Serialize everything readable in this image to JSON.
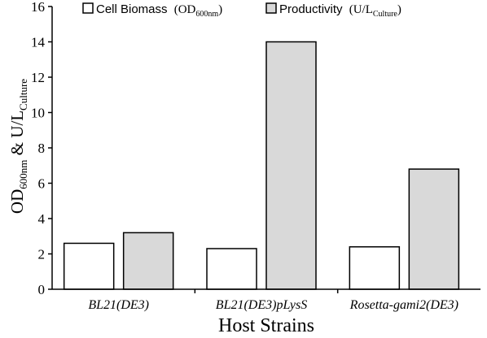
{
  "chart_data": {
    "type": "bar",
    "categories": [
      "BL21(DE3)",
      "BL21(DE3)pLysS",
      "Rosetta-gami2(DE3)"
    ],
    "series": [
      {
        "name": "Cell Biomass (OD600nm)",
        "color": "#ffffff",
        "values": [
          2.6,
          2.3,
          2.4
        ]
      },
      {
        "name": "Productivity (U/LCulture)",
        "color": "#d9d9d9",
        "values": [
          3.2,
          14.0,
          6.8
        ]
      }
    ],
    "xlabel": "Host Strains",
    "ylabel": "OD600nm & U/LCulture",
    "ylim": [
      0,
      16
    ],
    "yticks": [
      0,
      2,
      4,
      6,
      8,
      10,
      12,
      14,
      16
    ],
    "grid": false,
    "legend": "top-center"
  },
  "legend": {
    "biomass": {
      "main": "Cell Biomass",
      "paren_open": "(OD",
      "sub": "600nm",
      "paren_close": ")"
    },
    "productivity": {
      "main": "Productivity",
      "paren_open": "(U/L",
      "sub": "Culture",
      "paren_close": ")"
    }
  },
  "ylabel": {
    "part1": "OD",
    "sub1": "600nm",
    "part2": " & U/L",
    "sub2": "Culture"
  }
}
